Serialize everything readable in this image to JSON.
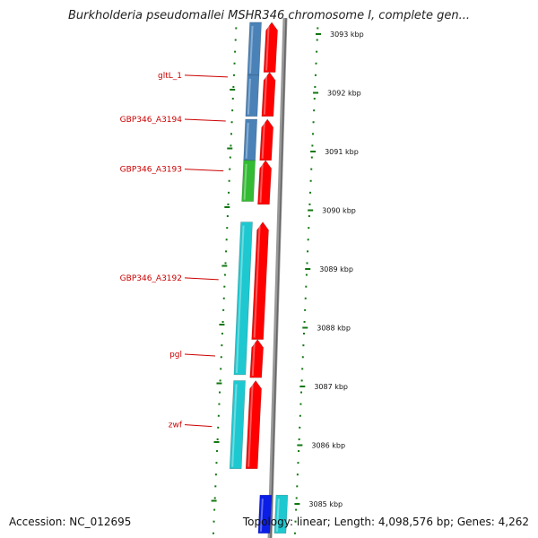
{
  "title": "Burkholderia pseudomallei MSHR346 chromosome I, complete gen...",
  "accession": "Accession: NC_012695",
  "topology": "Topology: linear; Length: 4,098,576 bp; Genes: 4,262",
  "colors": {
    "forward_strand": "#ff0000",
    "gene_blue": "#4a82b8",
    "gene_cyan": "#1ec8d0",
    "gene_green": "#33bb33",
    "gene_dark_blue": "#0a1ee6",
    "chromosome_line": "#888888",
    "ticks": "#117711",
    "labels": "#cc0000"
  },
  "scale_ticks": [
    {
      "label": "3093 kbp",
      "kbp": 3093
    },
    {
      "label": "3092 kbp",
      "kbp": 3092
    },
    {
      "label": "3091 kbp",
      "kbp": 3091
    },
    {
      "label": "3090 kbp",
      "kbp": 3090
    },
    {
      "label": "3089 kbp",
      "kbp": 3089
    },
    {
      "label": "3088 kbp",
      "kbp": 3088
    },
    {
      "label": "3087 kbp",
      "kbp": 3087
    },
    {
      "label": "3086 kbp",
      "kbp": 3086
    },
    {
      "label": "3085 kbp",
      "kbp": 3085
    }
  ],
  "gene_labels": [
    {
      "name": "gltL_1",
      "kbp": 3092.3
    },
    {
      "name": "GBP346_A3194",
      "kbp": 3091.55
    },
    {
      "name": "GBP346_A3193",
      "kbp": 3090.7
    },
    {
      "name": "GBP346_A3192",
      "kbp": 3088.85
    },
    {
      "name": "pgl",
      "kbp": 3087.55
    },
    {
      "name": "zwf",
      "kbp": 3086.35
    }
  ],
  "genes": [
    {
      "track": "left",
      "color": "gene_blue",
      "start_kbp": 3092.3,
      "end_kbp": 3093.2
    },
    {
      "track": "left",
      "color": "gene_blue",
      "start_kbp": 3091.6,
      "end_kbp": 3092.3
    },
    {
      "track": "left",
      "color": "gene_blue",
      "start_kbp": 3090.85,
      "end_kbp": 3091.55
    },
    {
      "track": "left",
      "color": "gene_green",
      "start_kbp": 3090.15,
      "end_kbp": 3090.85
    },
    {
      "track": "left",
      "color": "gene_cyan",
      "start_kbp": 3087.2,
      "end_kbp": 3089.8
    },
    {
      "track": "left",
      "color": "gene_cyan",
      "start_kbp": 3085.6,
      "end_kbp": 3087.1
    },
    {
      "track": "right",
      "color": "forward_strand",
      "start_kbp": 3092.35,
      "end_kbp": 3093.2
    },
    {
      "track": "right",
      "color": "forward_strand",
      "start_kbp": 3091.6,
      "end_kbp": 3092.35
    },
    {
      "track": "right",
      "color": "forward_strand",
      "start_kbp": 3090.85,
      "end_kbp": 3091.55
    },
    {
      "track": "right",
      "color": "forward_strand",
      "start_kbp": 3090.1,
      "end_kbp": 3090.85
    },
    {
      "track": "right",
      "color": "forward_strand",
      "start_kbp": 3087.8,
      "end_kbp": 3089.8
    },
    {
      "track": "right",
      "color": "forward_strand",
      "start_kbp": 3087.15,
      "end_kbp": 3087.8
    },
    {
      "track": "right",
      "color": "forward_strand",
      "start_kbp": 3085.6,
      "end_kbp": 3087.1
    },
    {
      "track": "far",
      "color": "gene_dark_blue",
      "start_kbp": 3084.5,
      "end_kbp": 3085.15
    },
    {
      "track": "far2",
      "color": "gene_cyan",
      "start_kbp": 3084.5,
      "end_kbp": 3085.15
    }
  ]
}
